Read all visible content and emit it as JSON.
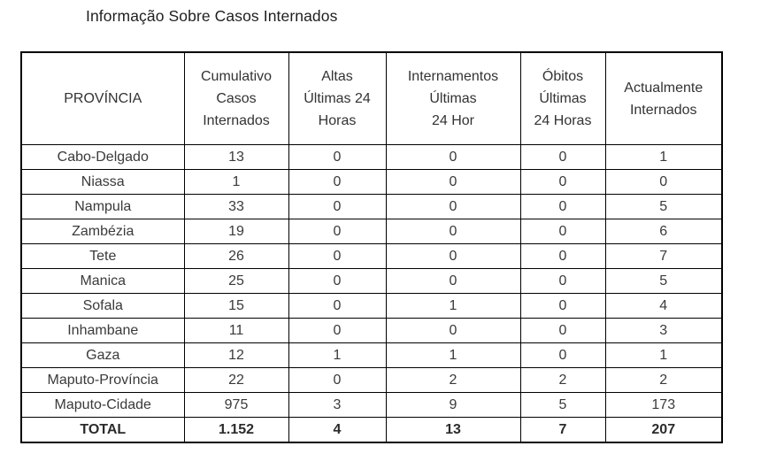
{
  "title": "Informação Sobre Casos Internados",
  "colors": {
    "border": "#000000",
    "text": "#3a3a3a",
    "title_text": "#1f1f1f",
    "background": "#ffffff"
  },
  "table": {
    "headers": [
      {
        "id": "provincia",
        "label": "PROVÍNCIA"
      },
      {
        "id": "cumulativo-casos-internados",
        "label": "Cumulativo\nCasos\nInternados"
      },
      {
        "id": "altas-ultimas-24-horas",
        "label": "Altas\nÚltimas 24\nHoras"
      },
      {
        "id": "internamentos-ultimas-24-hor",
        "label": "Internamentos\nÚltimas\n24 Hor"
      },
      {
        "id": "obitos-ultimas-24-horas",
        "label": "Óbitos\nÚltimas\n24 Horas"
      },
      {
        "id": "actualmente-internados",
        "label": "Actualmente\nInternados"
      }
    ],
    "rows": [
      [
        "Cabo-Delgado",
        "13",
        "0",
        "0",
        "0",
        "1"
      ],
      [
        "Niassa",
        "1",
        "0",
        "0",
        "0",
        "0"
      ],
      [
        "Nampula",
        "33",
        "0",
        "0",
        "0",
        "5"
      ],
      [
        "Zambézia",
        "19",
        "0",
        "0",
        "0",
        "6"
      ],
      [
        "Tete",
        "26",
        "0",
        "0",
        "0",
        "7"
      ],
      [
        "Manica",
        "25",
        "0",
        "0",
        "0",
        "5"
      ],
      [
        "Sofala",
        "15",
        "0",
        "1",
        "0",
        "4"
      ],
      [
        "Inhambane",
        "11",
        "0",
        "0",
        "0",
        "3"
      ],
      [
        "Gaza",
        "12",
        "1",
        "1",
        "0",
        "1"
      ],
      [
        "Maputo-Província",
        "22",
        "0",
        "2",
        "2",
        "2"
      ],
      [
        "Maputo-Cidade",
        "975",
        "3",
        "9",
        "5",
        "173"
      ]
    ],
    "total_row": [
      "TOTAL",
      "1.152",
      "4",
      "13",
      "7",
      "207"
    ]
  }
}
